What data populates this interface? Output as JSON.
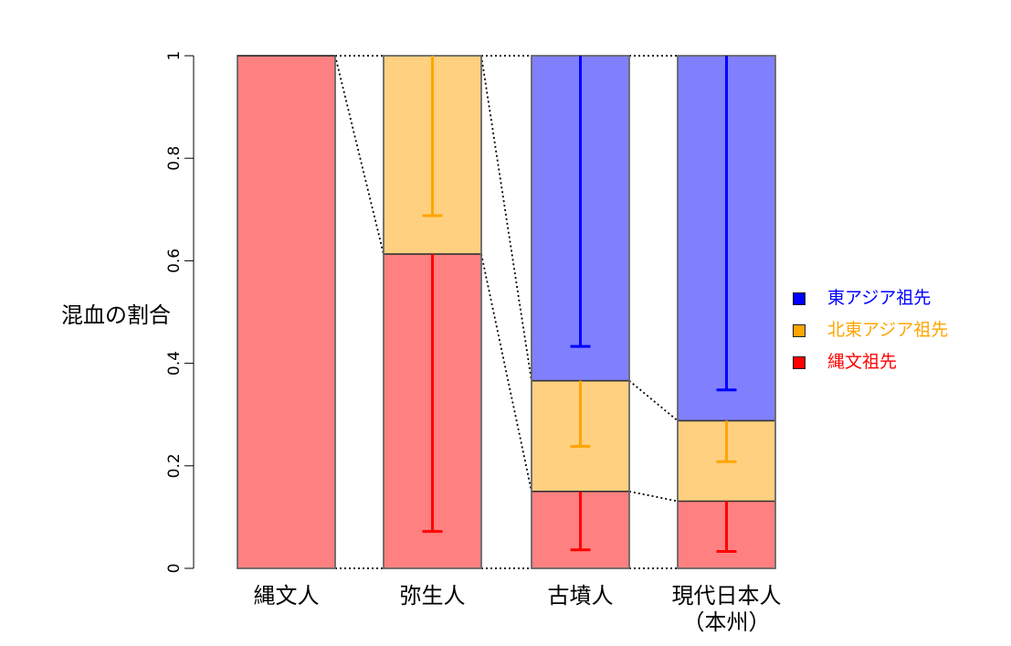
{
  "chart_data": {
    "type": "bar",
    "stacked": true,
    "title": "",
    "ylabel": "混血の割合",
    "ylim": [
      0,
      1
    ],
    "yticks": [
      "0",
      "0.2",
      "0.4",
      "0.6",
      "0.8",
      "1"
    ],
    "categories": [
      [
        "縄文人"
      ],
      [
        "弥生人"
      ],
      [
        "古墳人"
      ],
      [
        "現代日本人",
        "（本州）"
      ]
    ],
    "series": [
      {
        "name": "縄文祖先",
        "color": "#FF8080",
        "legend_color": "#FF0000",
        "err_color": "#FF0000",
        "values": [
          1.0,
          0.613,
          0.15,
          0.131
        ],
        "err": [
          null,
          0.072,
          0.036,
          0.033
        ]
      },
      {
        "name": "北東アジア祖先",
        "color": "#FFD080",
        "legend_color": "#FFA500",
        "err_color": "#FFA500",
        "values": [
          0,
          0.387,
          0.216,
          0.157
        ],
        "err": [
          null,
          0.688,
          0.238,
          0.208
        ]
      },
      {
        "name": "東アジア祖先",
        "color": "#8080FF",
        "legend_color": "#0000FF",
        "err_color": "#0000FF",
        "values": [
          0,
          0,
          0.634,
          0.712
        ],
        "err": [
          null,
          null,
          0.433,
          0.348
        ]
      }
    ],
    "legend": [
      "東アジア祖先",
      "北東アジア祖先",
      "縄文祖先"
    ],
    "legend_position": "right"
  }
}
